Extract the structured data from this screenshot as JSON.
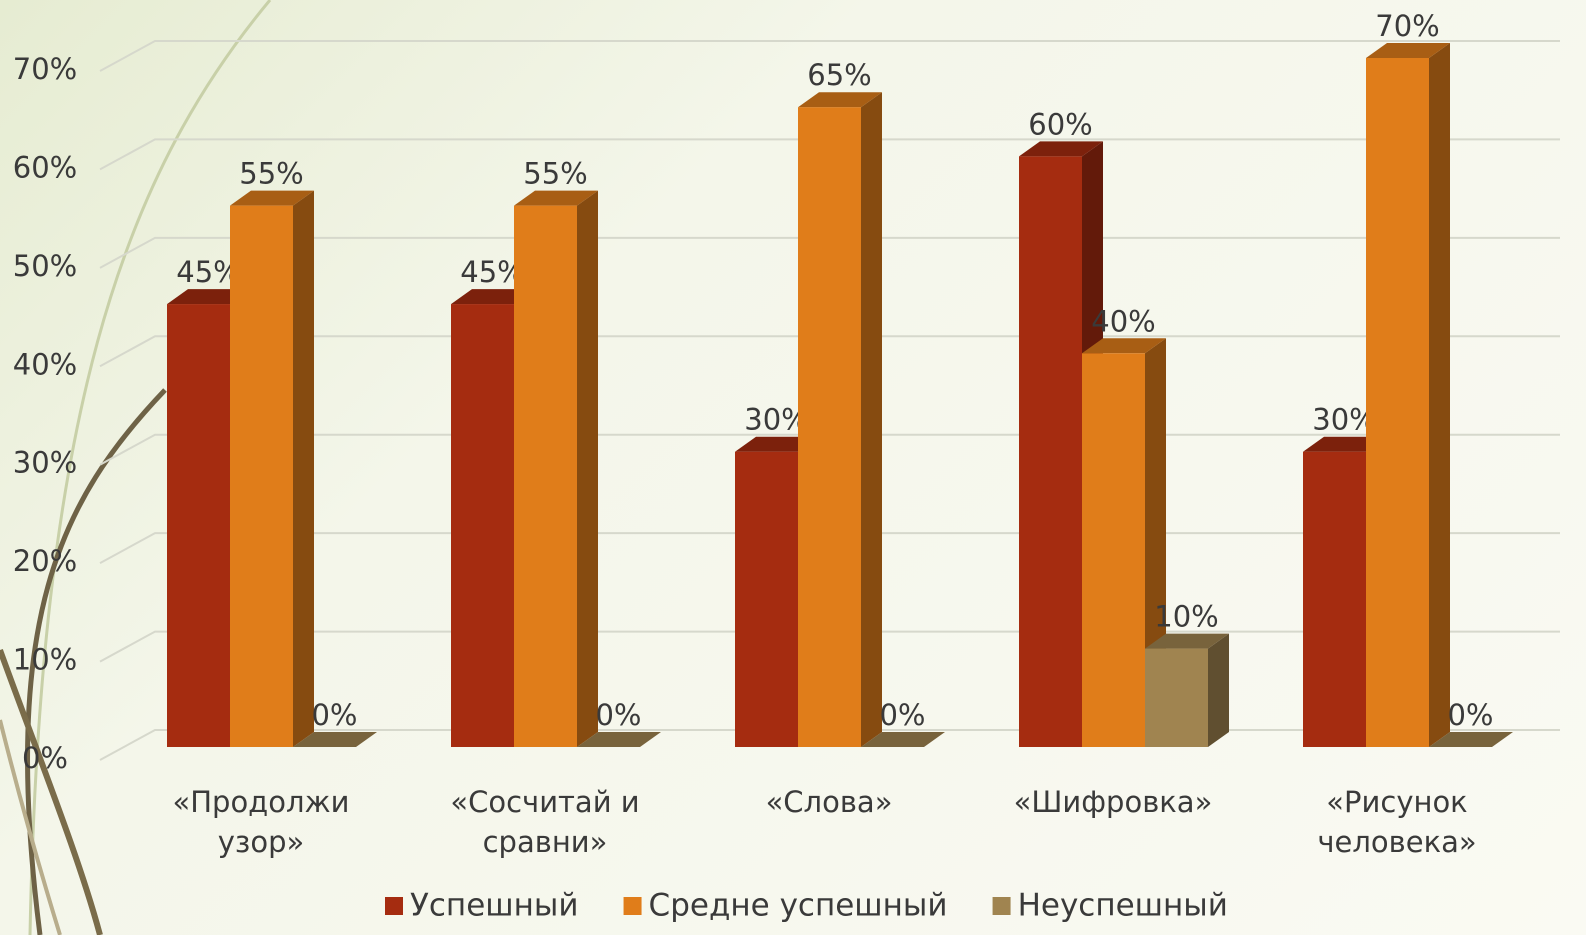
{
  "chart_data": {
    "type": "bar3d",
    "categories": [
      "«Продолжи узор»",
      "«Сосчитай и сравни»",
      "«Слова»",
      "«Шифровка»",
      "«Рисунок человека»"
    ],
    "series": [
      {
        "name": "Успешный",
        "color": "#a52c10",
        "values": [
          45,
          45,
          30,
          60,
          30
        ],
        "value_labels": [
          "45%",
          "45%",
          "30%",
          "60%",
          "30%"
        ]
      },
      {
        "name": "Средне успешный",
        "color": "#e07d1a",
        "values": [
          55,
          55,
          65,
          40,
          70
        ],
        "value_labels": [
          "55%",
          "55%",
          "65%",
          "40%",
          "70%"
        ]
      },
      {
        "name": "Неуспешный",
        "color": "#a08450",
        "values": [
          0,
          0,
          0,
          10,
          0
        ],
        "value_labels": [
          "0%",
          "0%",
          "0%",
          "10%",
          "0%"
        ]
      }
    ],
    "ylim": [
      0,
      70
    ],
    "yticks": [
      {
        "value": 0,
        "label": "0%"
      },
      {
        "value": 10,
        "label": "10%"
      },
      {
        "value": 20,
        "label": "20%"
      },
      {
        "value": 30,
        "label": "30%"
      },
      {
        "value": 40,
        "label": "40%"
      },
      {
        "value": 50,
        "label": "50%"
      },
      {
        "value": 60,
        "label": "60%"
      },
      {
        "value": 70,
        "label": "70%"
      }
    ],
    "grid": true
  }
}
